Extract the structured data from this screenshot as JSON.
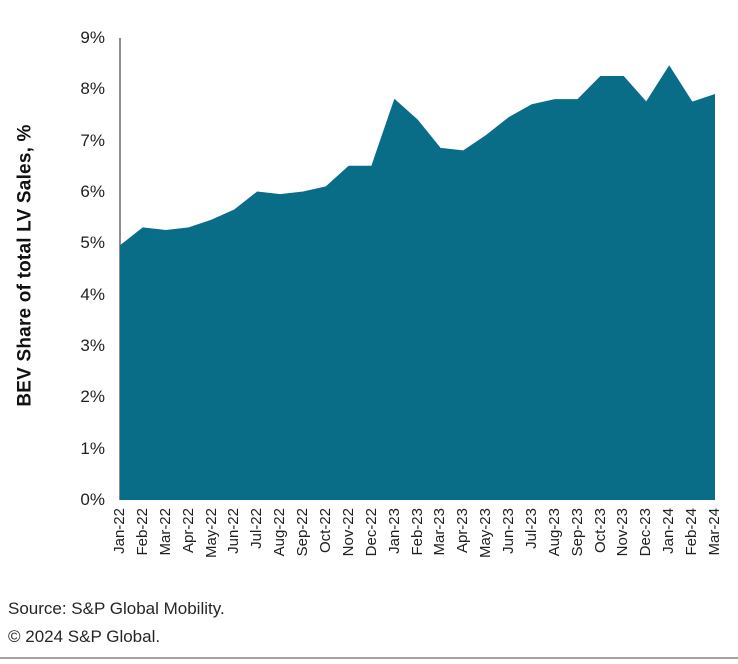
{
  "chart_data": {
    "type": "area",
    "title": "",
    "xlabel": "",
    "ylabel": "BEV Share of total LV Sales, %",
    "ylim": [
      0,
      9
    ],
    "ytick_labels": [
      "0%",
      "1%",
      "2%",
      "3%",
      "4%",
      "5%",
      "6%",
      "7%",
      "8%",
      "9%"
    ],
    "grid": "off",
    "legend": "none",
    "area_color": "#0A6D88",
    "categories": [
      "Jan-22",
      "Feb-22",
      "Mar-22",
      "Apr-22",
      "May-22",
      "Jun-22",
      "Jul-22",
      "Aug-22",
      "Sep-22",
      "Oct-22",
      "Nov-22",
      "Dec-22",
      "Jan-23",
      "Feb-23",
      "Mar-23",
      "Apr-23",
      "May-23",
      "Jun-23",
      "Jul-23",
      "Aug-23",
      "Sep-23",
      "Oct-23",
      "Nov-23",
      "Dec-23",
      "Jan-24",
      "Feb-24",
      "Mar-24"
    ],
    "values": [
      4.95,
      5.3,
      5.25,
      5.3,
      5.45,
      5.65,
      6.0,
      5.95,
      6.0,
      6.1,
      6.5,
      6.5,
      7.8,
      7.4,
      6.85,
      6.8,
      7.1,
      7.45,
      7.7,
      7.8,
      7.8,
      8.25,
      8.25,
      7.75,
      8.45,
      7.75,
      7.9
    ],
    "series": [
      {
        "name": "BEV share of total LV sales",
        "values": [
          4.95,
          5.3,
          5.25,
          5.3,
          5.45,
          5.65,
          6.0,
          5.95,
          6.0,
          6.1,
          6.5,
          6.5,
          7.8,
          7.4,
          6.85,
          6.8,
          7.1,
          7.45,
          7.7,
          7.8,
          7.8,
          8.25,
          8.25,
          7.75,
          8.45,
          7.75,
          7.9
        ]
      }
    ]
  },
  "footer": {
    "source": "Source: S&P Global Mobility.",
    "copyright": "© 2024 S&P Global."
  }
}
